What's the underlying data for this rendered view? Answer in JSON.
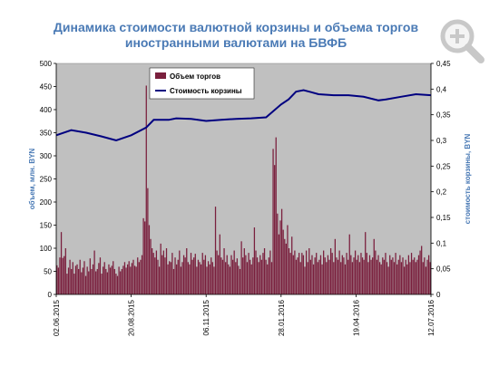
{
  "title_line1": "Динамика стоимости валютной корзины и объема торгов",
  "title_line2": "иностранными валютами на БВФБ",
  "icons": {
    "zoom": "magnify-plus-icon"
  },
  "chart_data": {
    "type": "bar+line",
    "ylabel_left": "объем, млн. BYN",
    "ylabel_right": "стоимость корзины, BYN",
    "ylim_left": [
      0,
      500
    ],
    "ylim_right": [
      0,
      0.45
    ],
    "yticks_left": [
      "0",
      "50",
      "100",
      "150",
      "200",
      "250",
      "300",
      "350",
      "400",
      "450",
      "500"
    ],
    "yticks_right": [
      "0",
      "0,05",
      "0,1",
      "0,15",
      "0,2",
      "0,25",
      "0,3",
      "0,35",
      "0,4",
      "0,45"
    ],
    "xtick_labels": [
      "02.06.2015",
      "20.08.2015",
      "06.11.2015",
      "28.01.2016",
      "19.04.2016",
      "12.07.2016"
    ],
    "grid": false,
    "legend_position": "top-left",
    "plot_background": "#c0c0c0",
    "bar_color": "#7a1f3d",
    "line_color": "#000080",
    "series": [
      {
        "name": "Объем торгов",
        "kind": "bar",
        "values": [
          63,
          58,
          80,
          135,
          79,
          83,
          100,
          45,
          58,
          75,
          55,
          70,
          45,
          62,
          65,
          55,
          75,
          48,
          58,
          72,
          40,
          60,
          50,
          78,
          55,
          65,
          95,
          50,
          55,
          68,
          80,
          45,
          60,
          70,
          55,
          48,
          65,
          58,
          62,
          72,
          55,
          45,
          40,
          60,
          50,
          55,
          62,
          70,
          58,
          65,
          72,
          60,
          68,
          75,
          62,
          60,
          80,
          70,
          75,
          85,
          165,
          158,
          452,
          230,
          150,
          120,
          100,
          90,
          80,
          95,
          75,
          60,
          110,
          85,
          95,
          80,
          100,
          65,
          72,
          70,
          90,
          55,
          80,
          65,
          75,
          95,
          60,
          70,
          85,
          80,
          100,
          70,
          65,
          90,
          75,
          80,
          88,
          60,
          75,
          70,
          65,
          90,
          75,
          85,
          60,
          72,
          65,
          80,
          70,
          60,
          190,
          95,
          85,
          130,
          80,
          75,
          100,
          70,
          85,
          65,
          60,
          85,
          75,
          95,
          70,
          78,
          62,
          55,
          115,
          80,
          100,
          85,
          70,
          90,
          75,
          65,
          80,
          145,
          95,
          80,
          70,
          85,
          75,
          90,
          100,
          75,
          65,
          80,
          95,
          70,
          315,
          280,
          340,
          175,
          130,
          160,
          185,
          140,
          120,
          110,
          150,
          100,
          90,
          125,
          85,
          95,
          75,
          80,
          90,
          70,
          90,
          85,
          60,
          95,
          70,
          100,
          75,
          85,
          65,
          80,
          90,
          70,
          75,
          85,
          65,
          95,
          80,
          70,
          85,
          75,
          100,
          90,
          70,
          120,
          80,
          75,
          95,
          70,
          85,
          80,
          65,
          90,
          75,
          130,
          85,
          70,
          80,
          95,
          75,
          85,
          70,
          90,
          80,
          75,
          135,
          90,
          70,
          85,
          75,
          80,
          120,
          95,
          75,
          85,
          70,
          65,
          80,
          75,
          90,
          70,
          60,
          85,
          75,
          80,
          70,
          90,
          65,
          75,
          85,
          70,
          80,
          60,
          75,
          65,
          85,
          70,
          90,
          75,
          80,
          70,
          75,
          85,
          95,
          105,
          70,
          80,
          60,
          75,
          85,
          70
        ]
      },
      {
        "name": "Стоимость корзины",
        "kind": "line",
        "axis": "right",
        "x": [
          0,
          0.04,
          0.08,
          0.12,
          0.16,
          0.2,
          0.24,
          0.26,
          0.28,
          0.3,
          0.32,
          0.36,
          0.4,
          0.44,
          0.48,
          0.52,
          0.56,
          0.6,
          0.62,
          0.64,
          0.66,
          0.68,
          0.7,
          0.74,
          0.78,
          0.82,
          0.86,
          0.88,
          0.92,
          0.96,
          1.0
        ],
        "values": [
          0.31,
          0.32,
          0.315,
          0.308,
          0.3,
          0.31,
          0.325,
          0.34,
          0.34,
          0.34,
          0.343,
          0.342,
          0.338,
          0.34,
          0.342,
          0.343,
          0.345,
          0.37,
          0.38,
          0.395,
          0.398,
          0.394,
          0.39,
          0.388,
          0.388,
          0.385,
          0.378,
          0.38,
          0.385,
          0.39,
          0.388
        ]
      }
    ]
  }
}
